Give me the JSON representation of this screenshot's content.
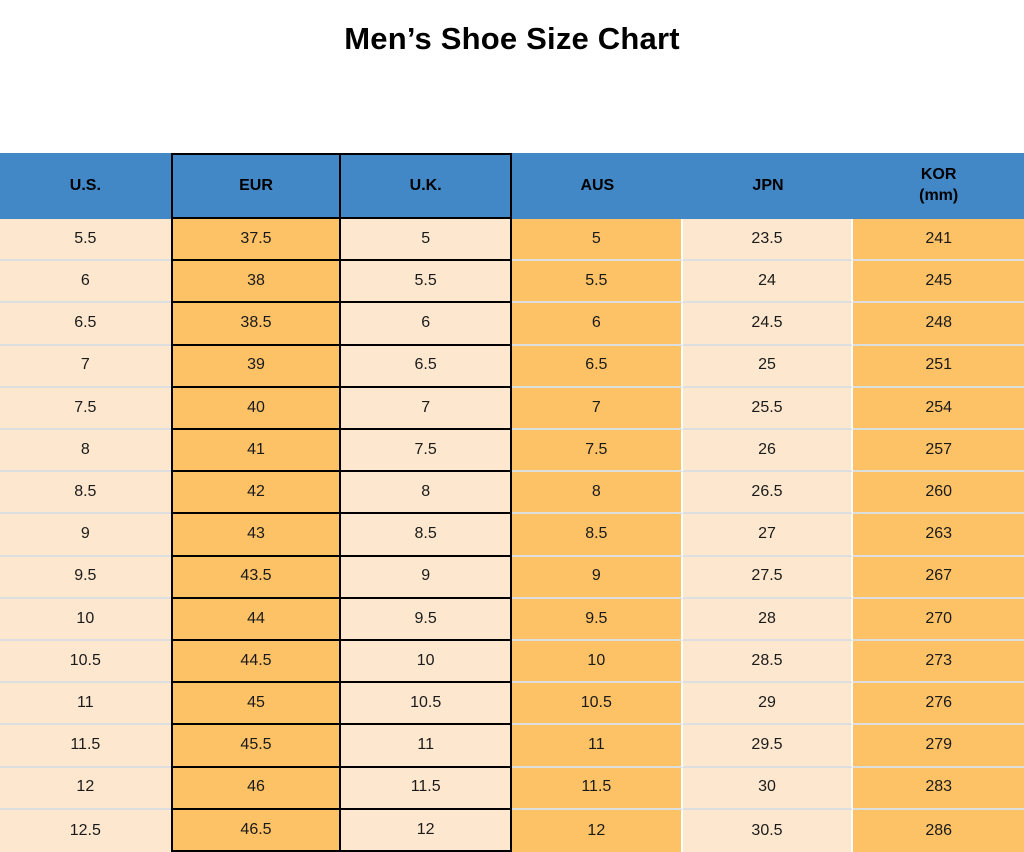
{
  "title": "Men’s Shoe Size Chart",
  "chart_data": {
    "type": "table",
    "title": "Men’s Shoe Size Chart",
    "columns": [
      {
        "id": "us",
        "label": "U.S.",
        "fill": "cream",
        "bordered": false
      },
      {
        "id": "eur",
        "label": "EUR",
        "fill": "orange",
        "bordered": true
      },
      {
        "id": "uk",
        "label": "U.K.",
        "fill": "cream",
        "bordered": true
      },
      {
        "id": "aus",
        "label": "AUS",
        "fill": "orange",
        "bordered": false
      },
      {
        "id": "jpn",
        "label": "JPN",
        "fill": "cream",
        "bordered": false
      },
      {
        "id": "kor",
        "label": "KOR (mm)",
        "label_lines": [
          "KOR",
          "(mm)"
        ],
        "fill": "orange",
        "bordered": false
      }
    ],
    "rows": [
      [
        "5.5",
        "37.5",
        "5",
        "5",
        "23.5",
        "241"
      ],
      [
        "6",
        "38",
        "5.5",
        "5.5",
        "24",
        "245"
      ],
      [
        "6.5",
        "38.5",
        "6",
        "6",
        "24.5",
        "248"
      ],
      [
        "7",
        "39",
        "6.5",
        "6.5",
        "25",
        "251"
      ],
      [
        "7.5",
        "40",
        "7",
        "7",
        "25.5",
        "254"
      ],
      [
        "8",
        "41",
        "7.5",
        "7.5",
        "26",
        "257"
      ],
      [
        "8.5",
        "42",
        "8",
        "8",
        "26.5",
        "260"
      ],
      [
        "9",
        "43",
        "8.5",
        "8.5",
        "27",
        "263"
      ],
      [
        "9.5",
        "43.5",
        "9",
        "9",
        "27.5",
        "267"
      ],
      [
        "10",
        "44",
        "9.5",
        "9.5",
        "28",
        "270"
      ],
      [
        "10.5",
        "44.5",
        "10",
        "10",
        "28.5",
        "273"
      ],
      [
        "11",
        "45",
        "10.5",
        "10.5",
        "29",
        "276"
      ],
      [
        "11.5",
        "45.5",
        "11",
        "11",
        "29.5",
        "279"
      ],
      [
        "12",
        "46",
        "11.5",
        "11.5",
        "30",
        "283"
      ],
      [
        "12.5",
        "46.5",
        "12",
        "12",
        "30.5",
        "286"
      ]
    ],
    "layout": {
      "grid": "column-striped",
      "legend": "none"
    }
  },
  "colors": {
    "header_blue": "#4288c6",
    "orange": "#fdc166",
    "cream": "#fde8cf",
    "grid_black": "#000000",
    "row_separator": "#dcdee0",
    "column_separator": "#ffffff",
    "text": "#1a1a1a"
  }
}
